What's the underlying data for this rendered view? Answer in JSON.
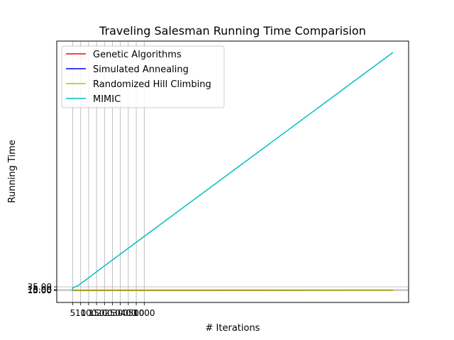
{
  "chart_data": {
    "type": "line",
    "title": "Traveling Salesman Running Time Comparision",
    "xlabel": "# Iterations",
    "ylabel": "Running Time",
    "x_ticks": [
      "5",
      "10",
      "100",
      "150",
      "200",
      "250",
      "300",
      "400",
      "500",
      "1000"
    ],
    "y_ticks": [
      "0.00",
      "5.00",
      "10.00",
      "15.00",
      "35.00"
    ],
    "grid": true,
    "legend_position": "top-left",
    "series": [
      {
        "name": "Genetic Algorithms",
        "color": "#ff0000",
        "x": [
          5,
          10,
          100,
          150,
          200,
          250,
          300,
          400,
          500,
          1000,
          5000
        ],
        "y": [
          0.05,
          0.05,
          0.06,
          0.07,
          0.08,
          0.09,
          0.1,
          0.12,
          0.14,
          0.2,
          1.2
        ]
      },
      {
        "name": "Simulated Annealing",
        "color": "#0000ff",
        "x": [
          5,
          10,
          100,
          150,
          200,
          250,
          300,
          400,
          500,
          1000,
          5000
        ],
        "y": [
          0.0,
          0.0,
          0.01,
          0.01,
          0.01,
          0.01,
          0.02,
          0.02,
          0.03,
          0.05,
          0.2
        ]
      },
      {
        "name": "Randomized Hill Climbing",
        "color": "#bfbf00",
        "x": [
          5,
          10,
          100,
          150,
          200,
          250,
          300,
          400,
          500,
          1000,
          5000
        ],
        "y": [
          0.0,
          0.0,
          0.01,
          0.01,
          0.01,
          0.01,
          0.02,
          0.02,
          0.03,
          0.04,
          0.15
        ]
      },
      {
        "name": "MIMIC",
        "color": "#00bfbf",
        "x": [
          5,
          10,
          100,
          150,
          200,
          250,
          300,
          400,
          500,
          1000,
          5000
        ],
        "y": [
          0.5,
          10,
          20,
          30,
          39,
          48,
          58,
          77,
          96,
          190,
          940
        ]
      }
    ]
  }
}
